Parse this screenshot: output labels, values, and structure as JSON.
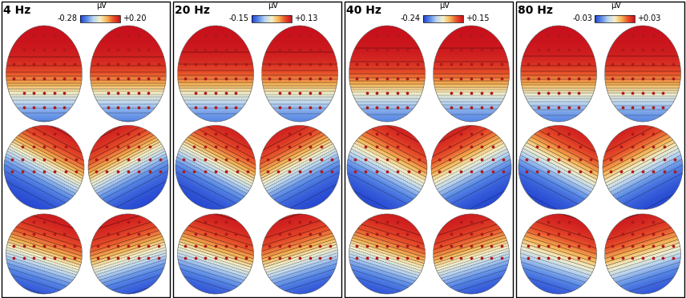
{
  "chart_data": [
    {
      "type": "topomap",
      "title": "4 Hz",
      "colorbar_label": "μV",
      "colorbar_range": [
        -0.28,
        0.2
      ],
      "colorbar_ticks": [
        -0.28,
        {
          "value": 0.2,
          "label": "+0.20"
        }
      ]
    },
    {
      "type": "topomap",
      "title": "20 Hz",
      "colorbar_label": "μV",
      "colorbar_range": [
        -0.15,
        0.13
      ],
      "colorbar_ticks": [
        -0.15,
        {
          "value": 0.13,
          "label": "+0.13"
        }
      ]
    },
    {
      "type": "topomap",
      "title": "40 Hz",
      "colorbar_label": "μV",
      "colorbar_range": [
        -0.24,
        0.15
      ],
      "colorbar_ticks": [
        -0.24,
        {
          "value": 0.15,
          "label": "+0.15"
        }
      ]
    },
    {
      "type": "topomap",
      "title": "80 Hz",
      "colorbar_label": "μV",
      "colorbar_range": [
        -0.03,
        0.03
      ],
      "colorbar_ticks": [
        -0.03,
        {
          "value": 0.03,
          "label": "+0.03"
        }
      ]
    }
  ]
}
